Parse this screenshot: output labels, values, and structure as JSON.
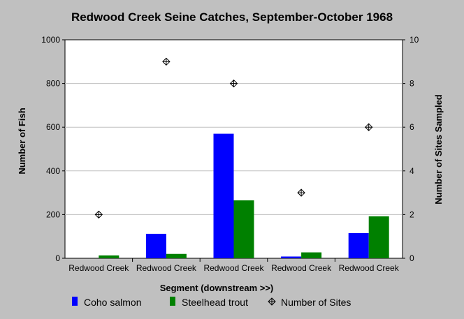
{
  "chart_data": {
    "type": "bar",
    "title": "Redwood Creek Seine Catches, September-October 1968",
    "xlabel": "Segment (downstream >>)",
    "ylabel": "Number of Fish",
    "y2label": "Number of Sites Sampled",
    "categories": [
      "Redwood Creek",
      "Redwood Creek",
      "Redwood Creek",
      "Redwood Creek",
      "Redwood Creek"
    ],
    "ylim": [
      0,
      1000
    ],
    "yticks": [
      0,
      200,
      400,
      600,
      800,
      1000
    ],
    "y2lim": [
      0,
      10
    ],
    "y2ticks": [
      0,
      2,
      4,
      6,
      8,
      10
    ],
    "grid": true,
    "legend_position": "bottom",
    "series": [
      {
        "name": "Coho salmon",
        "kind": "bar",
        "axis": "left",
        "color": "#0000ff",
        "values": [
          0,
          112,
          570,
          8,
          115
        ]
      },
      {
        "name": "Steelhead trout",
        "kind": "bar",
        "axis": "left",
        "color": "#008000",
        "values": [
          13,
          20,
          265,
          27,
          192
        ]
      },
      {
        "name": "Number of Sites",
        "kind": "marker",
        "axis": "right",
        "color": "#000000",
        "values": [
          2,
          9,
          8,
          3,
          6
        ]
      }
    ]
  }
}
